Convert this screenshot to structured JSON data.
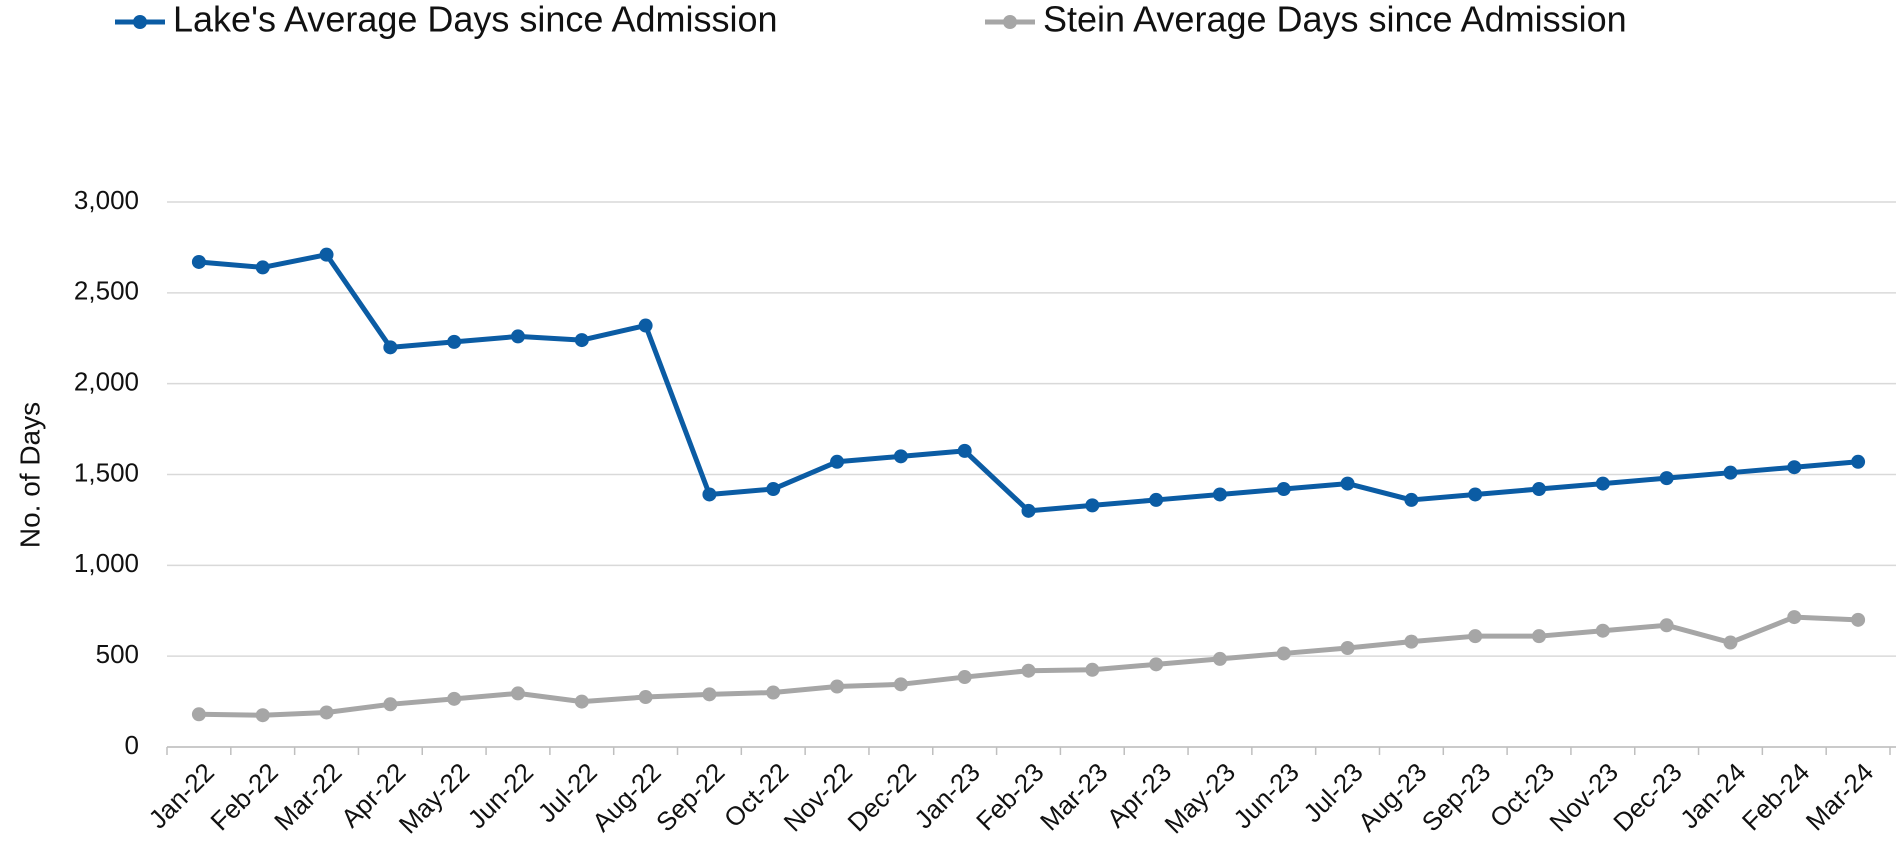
{
  "chart_data": {
    "type": "line",
    "y_label": "No. of Days",
    "categories": [
      "Jan-22",
      "Feb-22",
      "Mar-22",
      "Apr-22",
      "May-22",
      "Jun-22",
      "Jul-22",
      "Aug-22",
      "Sep-22",
      "Oct-22",
      "Nov-22",
      "Dec-22",
      "Jan-23",
      "Feb-23",
      "Mar-23",
      "Apr-23",
      "May-23",
      "Jun-23",
      "Jul-23",
      "Aug-23",
      "Sep-23",
      "Oct-23",
      "Nov-23",
      "Dec-23",
      "Jan-24",
      "Feb-24",
      "Mar-24"
    ],
    "series": [
      {
        "name": "Lake's Average Days since Admission",
        "color": "#0b5ca4",
        "values": [
          2670,
          2640,
          2710,
          2200,
          2230,
          2260,
          2240,
          2320,
          1390,
          1420,
          1570,
          1600,
          1630,
          1300,
          1330,
          1360,
          1390,
          1420,
          1450,
          1360,
          1390,
          1420,
          1450,
          1480,
          1510,
          1540,
          1570
        ]
      },
      {
        "name": "Stein Average Days since Admission",
        "color": "#a6a6a6",
        "values": [
          180,
          175,
          190,
          235,
          265,
          295,
          250,
          275,
          290,
          300,
          333,
          345,
          385,
          420,
          425,
          455,
          485,
          515,
          545,
          580,
          610,
          610,
          640,
          670,
          575,
          715,
          700
        ]
      }
    ],
    "ylim": [
      0,
      3000
    ],
    "yticks": [
      0,
      500,
      {
        "value": 1000,
        "label": "1,000"
      },
      {
        "value": 1500,
        "label": "1,500"
      },
      {
        "value": 2000,
        "label": "2,000"
      },
      {
        "value": 2500,
        "label": "2,500"
      },
      {
        "value": 3000,
        "label": "3,000"
      }
    ],
    "grid": true,
    "legend_position": "top"
  }
}
